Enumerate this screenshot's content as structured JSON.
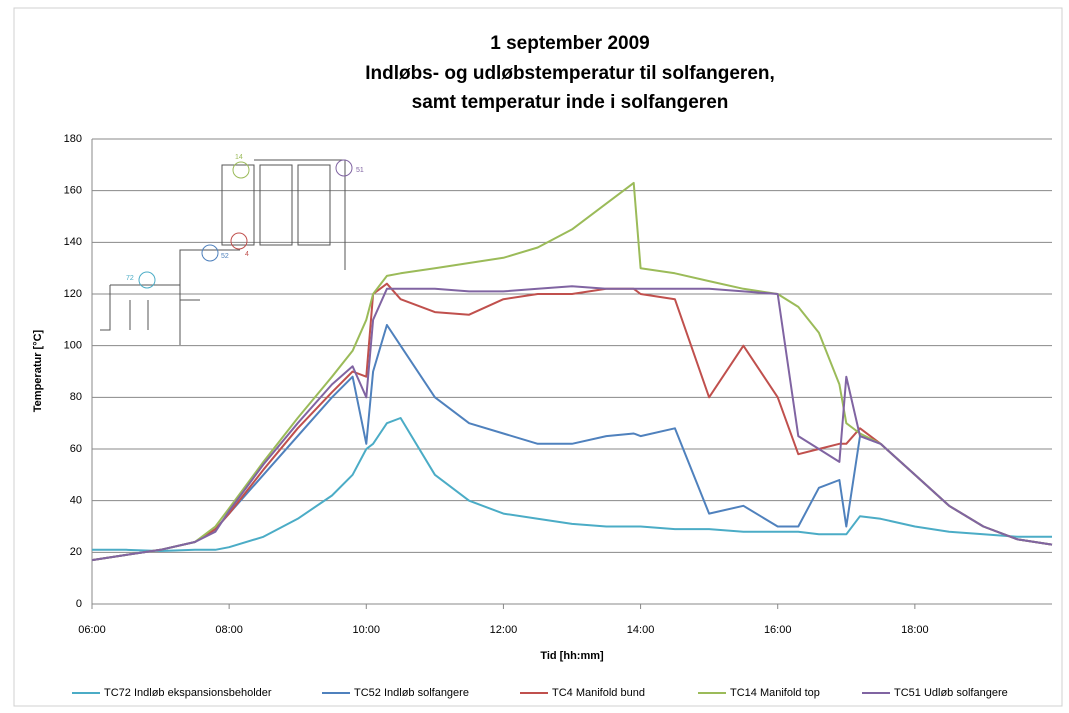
{
  "chart_data": {
    "type": "line",
    "title": [
      "1 september 2009",
      "Indløbs- og udløbstemperatur til solfangeren,",
      "samt temperatur inde i solfangeren"
    ],
    "x_label": "Tid [hh:mm]",
    "y_label": "Temperatur [°C]",
    "xlim": [
      6,
      20
    ],
    "xticks": [
      {
        "value": 6,
        "label": "06:00"
      },
      {
        "value": 8,
        "label": "08:00"
      },
      {
        "value": 10,
        "label": "10:00"
      },
      {
        "value": 12,
        "label": "12:00"
      },
      {
        "value": 14,
        "label": "14:00"
      },
      {
        "value": 16,
        "label": "16:00"
      },
      {
        "value": 18,
        "label": "18:00"
      }
    ],
    "ylim": [
      0,
      180
    ],
    "yticks": [
      0,
      20,
      40,
      60,
      80,
      100,
      120,
      140,
      160,
      180
    ],
    "grid": true,
    "legend": "bottom",
    "annotations": [
      "14",
      "51",
      "52",
      "4",
      "72"
    ],
    "x": [
      6,
      6.5,
      7,
      7.5,
      7.8,
      8,
      8.5,
      9,
      9.5,
      9.8,
      10,
      10.1,
      10.3,
      10.5,
      11,
      11.5,
      12,
      12.5,
      13,
      13.5,
      13.9,
      14,
      14.5,
      15,
      15.5,
      16,
      16.3,
      16.6,
      16.9,
      17,
      17.2,
      17.5,
      18,
      18.5,
      19,
      19.5,
      20
    ],
    "series": [
      {
        "name": "TC72 Indløb ekspansionsbeholder",
        "color": "#4bacc6",
        "values": [
          21,
          21,
          20.5,
          21,
          21,
          22,
          26,
          33,
          42,
          50,
          60,
          62,
          70,
          72,
          50,
          40,
          35,
          33,
          31,
          30,
          30,
          30,
          29,
          29,
          28,
          28,
          28,
          27,
          27,
          27,
          34,
          33,
          30,
          28,
          27,
          26,
          26
        ]
      },
      {
        "name": "TC52 Indløb solfangere",
        "color": "#4f81bd",
        "values": [
          17,
          19,
          21,
          24,
          29,
          35,
          50,
          65,
          80,
          88,
          62,
          90,
          108,
          100,
          80,
          70,
          66,
          62,
          62,
          65,
          66,
          65,
          68,
          35,
          38,
          30,
          30,
          45,
          48,
          30,
          65,
          62,
          50,
          38,
          30,
          25,
          23
        ]
      },
      {
        "name": "TC4 Manifold bund",
        "color": "#c0504d",
        "values": [
          17,
          19,
          21,
          24,
          29,
          35,
          52,
          68,
          82,
          90,
          88,
          120,
          124,
          118,
          113,
          112,
          118,
          120,
          120,
          122,
          122,
          120,
          118,
          80,
          100,
          80,
          58,
          60,
          62,
          62,
          68,
          62,
          50,
          38,
          30,
          25,
          23
        ]
      },
      {
        "name": "TC14 Manifold top",
        "color": "#9bbb59",
        "values": [
          17,
          19,
          21,
          24,
          30,
          37,
          55,
          72,
          88,
          98,
          110,
          120,
          127,
          128,
          130,
          132,
          134,
          138,
          145,
          155,
          163,
          130,
          128,
          125,
          122,
          120,
          115,
          105,
          85,
          70,
          66,
          62,
          50,
          38,
          30,
          25,
          23
        ]
      },
      {
        "name": "TC51 Udløb solfangere",
        "color": "#8064a2",
        "values": [
          17,
          19,
          21,
          24,
          28,
          36,
          54,
          70,
          85,
          92,
          80,
          110,
          122,
          122,
          122,
          121,
          121,
          122,
          123,
          122,
          122,
          122,
          122,
          122,
          121,
          120,
          65,
          60,
          55,
          88,
          65,
          62,
          50,
          38,
          30,
          25,
          23
        ]
      }
    ]
  }
}
